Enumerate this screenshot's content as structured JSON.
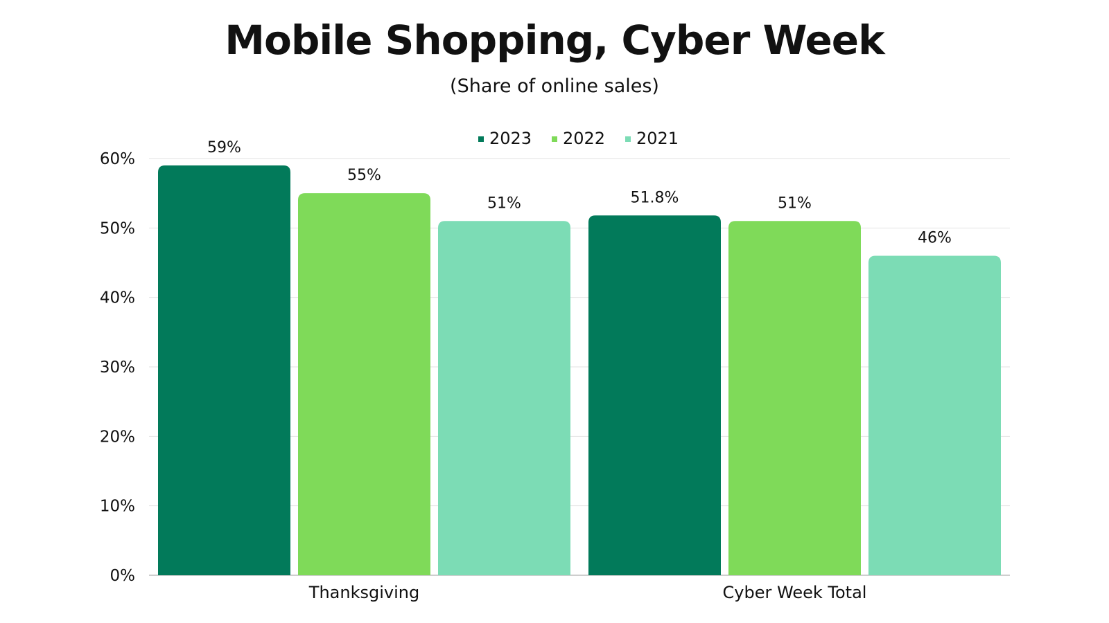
{
  "chart_data": {
    "type": "bar",
    "title": "Mobile Shopping, Cyber Week",
    "subtitle": "(Share of online sales)",
    "xlabel": "",
    "ylabel": "",
    "categories": [
      "Thanksgiving",
      "Cyber Week Total"
    ],
    "series": [
      {
        "name": "2023",
        "values": [
          59,
          51.8
        ],
        "labels": [
          "59%",
          "51.8%"
        ],
        "color": "#027A5A"
      },
      {
        "name": "2022",
        "values": [
          55,
          51
        ],
        "labels": [
          "55%",
          "51%"
        ],
        "color": "#7FDA59"
      },
      {
        "name": "2021",
        "values": [
          51,
          46
        ],
        "labels": [
          "51%",
          "46%"
        ],
        "color": "#7CDCB5"
      }
    ],
    "ylim": [
      0,
      60
    ],
    "yticks": [
      0,
      10,
      20,
      30,
      40,
      50,
      60
    ],
    "ytick_labels": [
      "0%",
      "10%",
      "20%",
      "30%",
      "40%",
      "50%",
      "60%"
    ],
    "grid": true,
    "grid_color": "#E2E2E2",
    "axis_color": "#BDBDBD",
    "legend_position": "top-center"
  }
}
